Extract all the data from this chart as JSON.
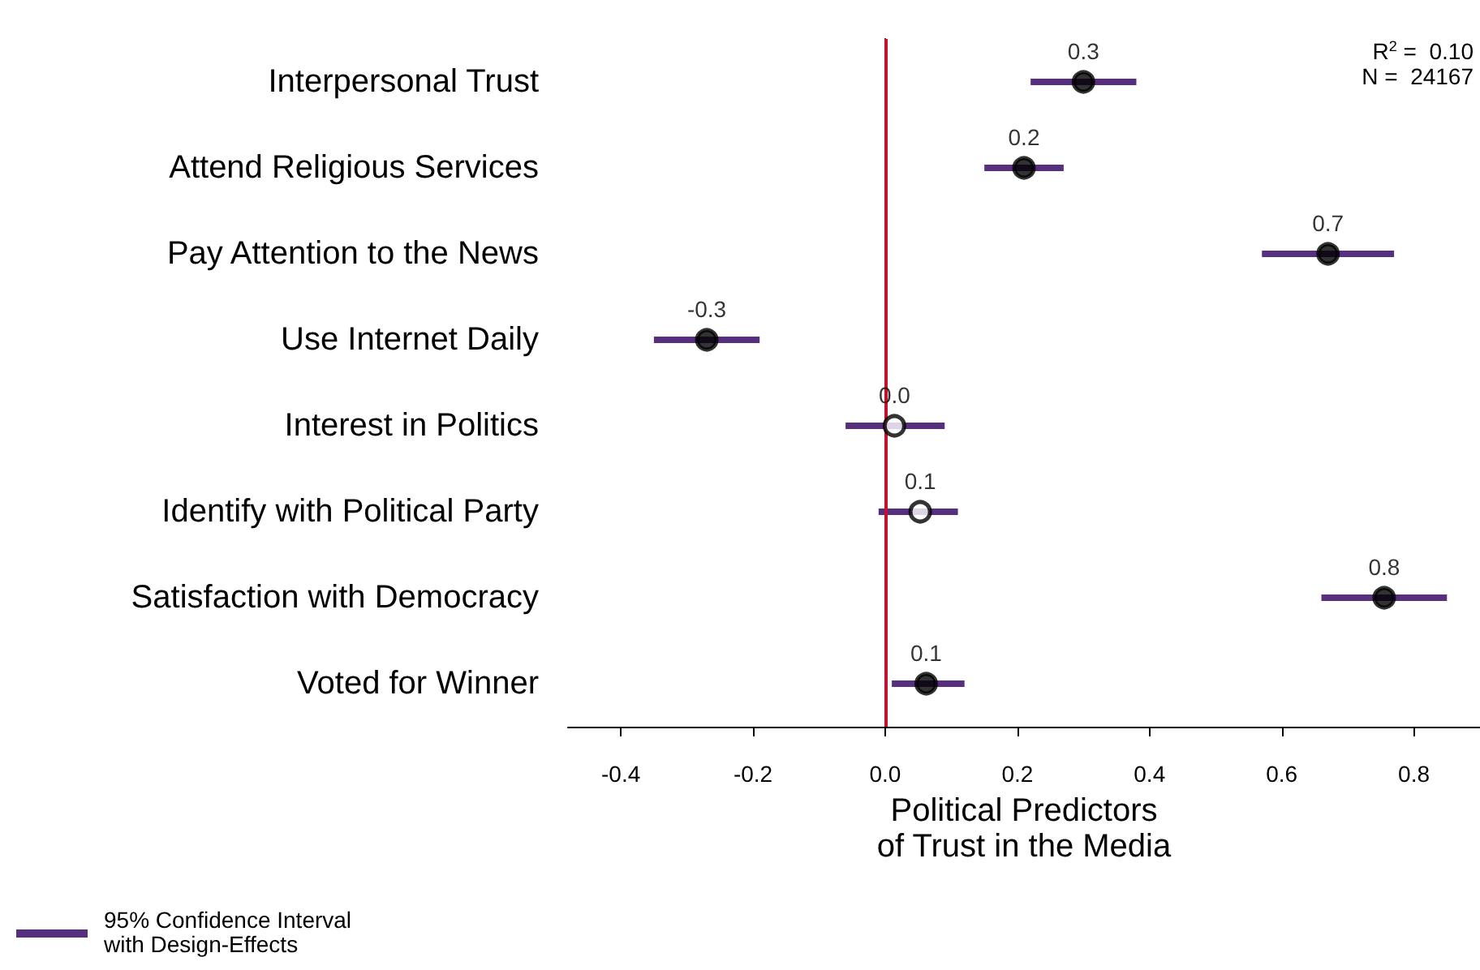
{
  "chart_data": {
    "type": "scatter",
    "orientation": "horizontal",
    "xlabel": "Political Predictors\nof Trust in the Media",
    "categories": [
      "Interpersonal Trust",
      "Attend Religious Services",
      "Pay Attention to the News",
      "Use Internet Daily",
      "Interest in Politics",
      "Identify with Political Party",
      "Satisfaction with Democracy",
      "Voted for Winner"
    ],
    "series": [
      {
        "name": "95% Confidence Interval\nwith Design-Effects",
        "color": "#56307f",
        "values": [
          0.3,
          0.21,
          0.67,
          -0.27,
          0.014,
          0.053,
          0.755,
          0.062
        ],
        "errors": [
          [
            0.22,
            0.38
          ],
          [
            0.15,
            0.27
          ],
          [
            0.57,
            0.77
          ],
          [
            -0.35,
            -0.19
          ],
          [
            -0.06,
            0.09
          ],
          [
            -0.01,
            0.11
          ],
          [
            0.66,
            0.85
          ],
          [
            0.01,
            0.12
          ]
        ],
        "colors": [
          "#000000",
          "#000000",
          "#000000",
          "#000000",
          "#ffffff",
          "#ffffff",
          "#000000",
          "#000000"
        ],
        "value_labels": [
          "0.3",
          "0.2",
          "0.7",
          "-0.3",
          "0.0",
          "0.1",
          "0.8",
          "0.1"
        ]
      }
    ],
    "xlim": [
      -0.48,
      0.9
    ],
    "xticks": [
      {
        "value": -0.4,
        "label": "-0.4"
      },
      {
        "value": -0.2,
        "label": "-0.2"
      },
      {
        "value": 0,
        "label": "0.0"
      },
      {
        "value": 0.2,
        "label": "0.2"
      },
      {
        "value": 0.4,
        "label": "0.4"
      },
      {
        "value": 0.6,
        "label": "0.6"
      },
      {
        "value": 0.8,
        "label": "0.8"
      }
    ],
    "ref_lines": [
      {
        "axis": "x",
        "value": 0,
        "color": "#c8102e"
      }
    ],
    "annotations": [
      "R$^{2}$ =  0.10",
      "N =  24167"
    ],
    "legend": "bottom left",
    "grid": false,
    "marker": "circle"
  }
}
